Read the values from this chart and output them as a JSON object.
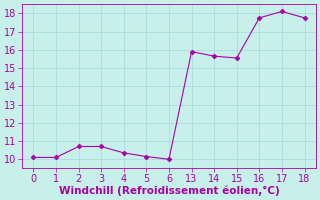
{
  "y": [
    10.1,
    10.1,
    10.7,
    10.7,
    10.35,
    10.15,
    10.0,
    15.9,
    15.65,
    15.55,
    17.75,
    18.1,
    17.75
  ],
  "x_positions": [
    0,
    1,
    2,
    3,
    4,
    5,
    6,
    7,
    8,
    9,
    10,
    11,
    12
  ],
  "line_color": "#aa00aa",
  "marker": "D",
  "marker_size": 2.5,
  "background_color": "#c8f0ea",
  "grid_color": "#aadddd",
  "xlabel": "Windchill (Refroidissement éolien,°C)",
  "xlabel_color": "#aa00aa",
  "xlabel_fontsize": 7.5,
  "tick_color": "#aa00aa",
  "tick_fontsize": 7,
  "xlim": [
    -0.5,
    12.5
  ],
  "ylim": [
    9.5,
    18.5
  ],
  "yticks": [
    10,
    11,
    12,
    13,
    14,
    15,
    16,
    17,
    18
  ],
  "xtick_labels": [
    "0",
    "1",
    "2",
    "3",
    "4",
    "5",
    "6",
    "13",
    "14",
    "15",
    "16",
    "17",
    "18"
  ]
}
